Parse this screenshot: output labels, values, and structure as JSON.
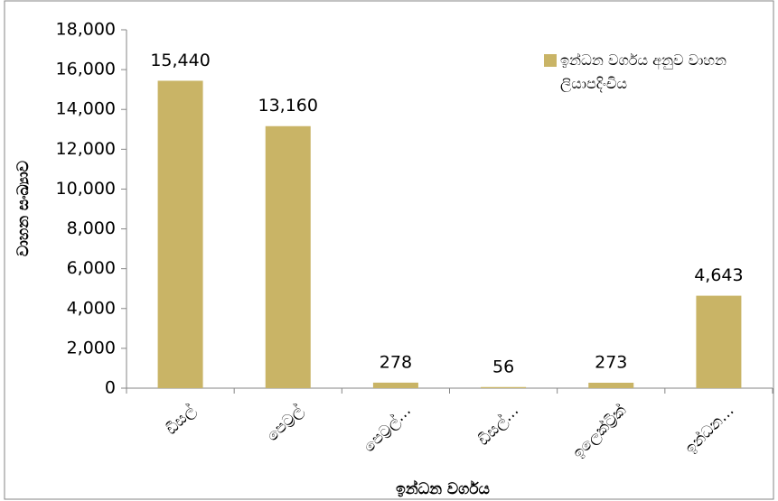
{
  "chart_data": {
    "type": "bar",
    "x_label": "ඉන්ධන වර්ගය",
    "y_label": "වාහන සංඛ්‍යාව",
    "categories": [
      "ඩීසල්",
      "පෙට්‍රල්",
      "පෙට්‍රල්…",
      "ඩීසල්…",
      "ඉලෙක්ට්‍රික්",
      "ඉන්ධන…"
    ],
    "series": [
      {
        "name": "ඉන්ධන වර්ගය අනුව වාහන ලියාපදිංචිය",
        "color": "#c9b466",
        "values": [
          15440,
          13160,
          278,
          56,
          273,
          4643
        ],
        "value_labels": [
          "15,440",
          "13,160",
          "278",
          "56",
          "273",
          "4,643"
        ]
      }
    ],
    "ylim": [
      0,
      18000
    ],
    "yticks": [
      0,
      {
        "value": 2000,
        "label": "2,000"
      },
      {
        "value": 4000,
        "label": "4,000"
      },
      {
        "value": 6000,
        "label": "6,000"
      },
      {
        "value": 8000,
        "label": "8,000"
      },
      {
        "value": 10000,
        "label": "10,000"
      },
      {
        "value": 12000,
        "label": "12,000"
      },
      {
        "value": 14000,
        "label": "14,000"
      },
      {
        "value": 16000,
        "label": "16,000"
      },
      {
        "value": 18000,
        "label": "18,000"
      }
    ],
    "legend": "top-right",
    "grid": false
  }
}
